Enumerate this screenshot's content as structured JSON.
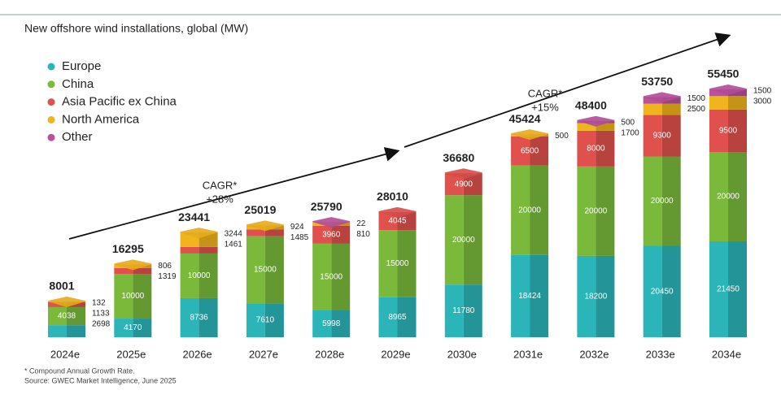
{
  "chart_data": {
    "type": "stacked-bar",
    "title": "New offshore wind installations, global (MW)",
    "categories": [
      "2024e",
      "2025e",
      "2026e",
      "2027e",
      "2028e",
      "2029e",
      "2030e",
      "2031e",
      "2032e",
      "2033e",
      "2034e"
    ],
    "series": [
      {
        "name": "Europe",
        "color": "#2bb5b8",
        "values": [
          2698,
          4170,
          8736,
          7610,
          5998,
          8965,
          11780,
          18424,
          18200,
          20450,
          21450
        ]
      },
      {
        "name": "China",
        "color": "#7ab93a",
        "values": [
          4038,
          10000,
          10000,
          15000,
          15000,
          15000,
          20000,
          20000,
          20000,
          20000,
          20000
        ]
      },
      {
        "name": "Asia Pacific ex China",
        "color": "#e0504c",
        "values": [
          1133,
          1319,
          1461,
          1485,
          3960,
          4045,
          4900,
          6500,
          8000,
          9300,
          9500
        ]
      },
      {
        "name": "North America",
        "color": "#f0b41c",
        "values": [
          132,
          806,
          3244,
          924,
          810,
          null,
          null,
          500,
          1700,
          2500,
          3000
        ]
      },
      {
        "name": "Other",
        "color": "#b9519e",
        "values": [
          null,
          null,
          null,
          null,
          22,
          null,
          null,
          null,
          500,
          1500,
          1500
        ]
      }
    ],
    "totals": [
      8001,
      16295,
      23441,
      25019,
      25790,
      28010,
      36680,
      45424,
      48400,
      53750,
      55450
    ],
    "annotations": [
      [
        "CAGR*",
        "+28%"
      ],
      [
        "CAGR*",
        "+15%"
      ]
    ],
    "footnotes": [
      "* Compound Annual Growth Rate.",
      "Source: GWEC Market Intelligence, June 2025"
    ]
  }
}
